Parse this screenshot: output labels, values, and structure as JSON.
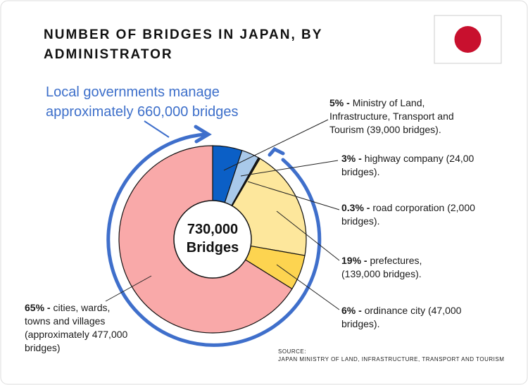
{
  "chart_data": {
    "type": "donut",
    "title": "NUMBER OF BRIDGES IN JAPAN, BY ADMINISTRATOR",
    "annotation": "Local governments manage approximately 660,000 bridges",
    "center_value_label": "730,000",
    "center_label": "Bridges",
    "categories": [
      "Ministry of Land, Infrastructure, Transport and Tourism (39,000 bridges).",
      "highway company (24,00 bridges).",
      "road corporation (2,000 bridges).",
      "prefectures, (139,000 bridges).",
      "ordinance city (47,000 bridges).",
      "cities, wards, towns and villages (approximately 477,000 bridges)"
    ],
    "values": [
      5,
      3,
      0.3,
      19,
      6,
      65
    ],
    "value_labels": [
      "5% -",
      "3% -",
      "0.3% -",
      "19% -",
      "6% -",
      "65% -"
    ],
    "colors": [
      "#0b5fc6",
      "#a9c9ea",
      "#1c1c1c",
      "#fde79c",
      "#fdd450",
      "#f9a9a9"
    ],
    "source_title": "SOURCE:",
    "source": "JAPAN MINISTRY OF LAND, INFRASTRUCTURE, TRANSPORT AND TOURISM"
  }
}
